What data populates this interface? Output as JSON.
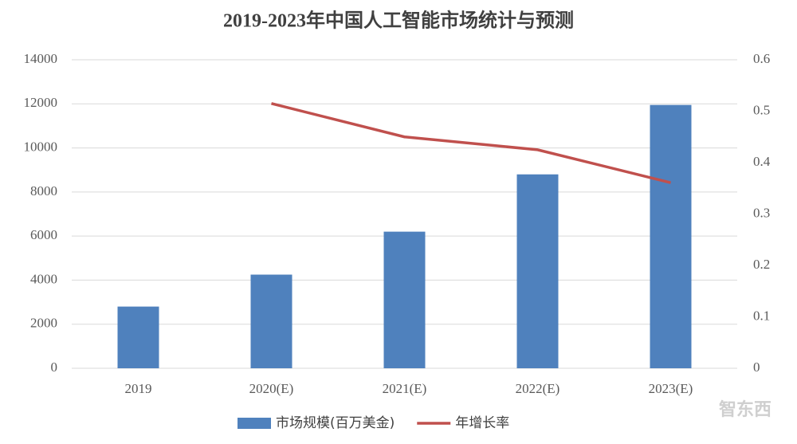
{
  "chart_data": {
    "type": "bar",
    "title": "2019-2023年中国人工智能市场统计与预测",
    "categories": [
      "2019",
      "2020(E)",
      "2021(E)",
      "2022(E)",
      "2023(E)"
    ],
    "series": [
      {
        "name": "市场规模(百万美金)",
        "type": "bar",
        "color": "#4f81bd",
        "values": [
          2800,
          4250,
          6200,
          8800,
          11950
        ]
      },
      {
        "name": "年增长率",
        "type": "line",
        "axis": "y2",
        "color": "#c0504d",
        "values": [
          null,
          0.515,
          0.45,
          0.425,
          0.361
        ]
      }
    ],
    "ylim": [
      0,
      14000
    ],
    "yticks": [
      0,
      2000,
      4000,
      6000,
      8000,
      10000,
      12000,
      14000
    ],
    "y2lim": [
      0,
      0.6
    ],
    "y2ticks": [
      0,
      0.1,
      0.2,
      0.3,
      0.4,
      0.5,
      0.6
    ],
    "grid": true,
    "legend": "bottom",
    "watermark": "智东西"
  }
}
